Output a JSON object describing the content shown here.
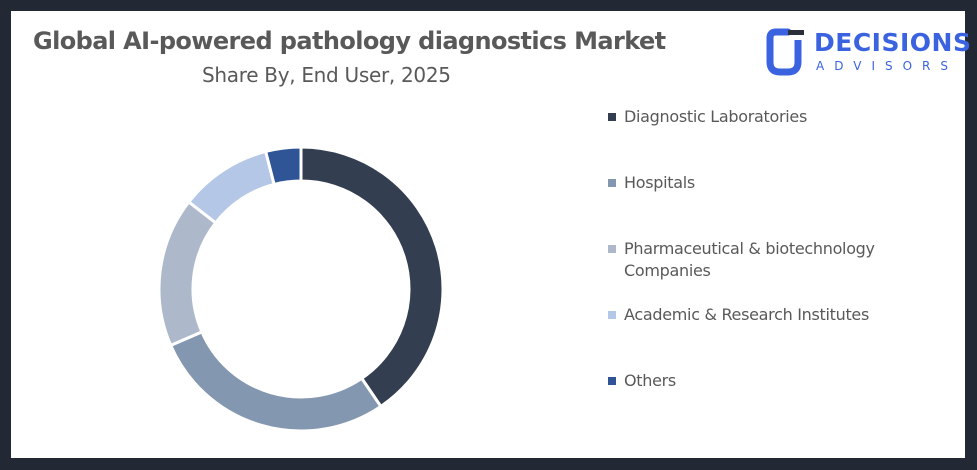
{
  "header": {
    "title": "Global AI-powered pathology diagnostics Market",
    "subtitle": "Share By, End User, 2025"
  },
  "logo": {
    "name": "DECISIONS",
    "tagline": "ADVISORS",
    "icon": "decisions-advisors-logo-icon",
    "color": "#3b63e0"
  },
  "chart_data": {
    "type": "pie",
    "variant": "donut",
    "title": "Global AI-powered pathology diagnostics Market",
    "subtitle": "Share By, End User, 2025",
    "categories": [
      "Diagnostic Laboratories",
      "Hospitals",
      "Pharmaceutical & biotechnology Companies",
      "Academic & Research Institutes",
      "Others"
    ],
    "values": [
      40.5,
      28,
      17,
      10.5,
      4
    ],
    "unit": "%",
    "colors": [
      "#333f50",
      "#8497b0",
      "#adb9ca",
      "#b4c7e7",
      "#2f5597"
    ],
    "start_angle": "12 o'clock, clockwise",
    "legend_position": "right",
    "data_labels": false
  },
  "legend": {
    "items": [
      {
        "label": "Diagnostic Laboratories",
        "color": "#333f50"
      },
      {
        "label": "Hospitals",
        "color": "#8497b0"
      },
      {
        "label": "Pharmaceutical & biotechnology Companies",
        "color": "#adb9ca"
      },
      {
        "label": "Academic & Research Institutes",
        "color": "#b4c7e7"
      },
      {
        "label": "Others",
        "color": "#2f5597"
      }
    ]
  }
}
